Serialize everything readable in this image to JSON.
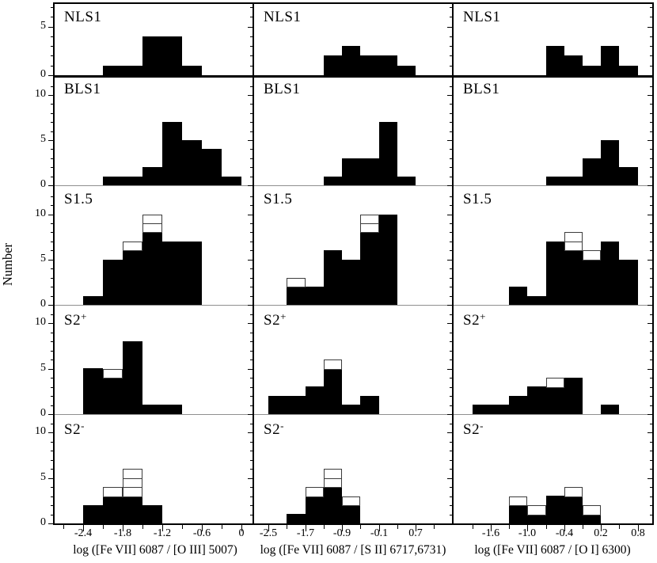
{
  "chart_data": {
    "type": "bar",
    "subtype": "histogram-grid",
    "description": "5x3 grid of histograms; filled black histogram with open (unfilled unit-box) histogram overlay in some panels",
    "ylabel": "Number",
    "columns": [
      {
        "xlabel": "log ([Fe VII] 6087 / [O III] 5007)",
        "xlim": [
          -2.85,
          0.18
        ],
        "bin_width": 0.3,
        "major_ticks": [
          -2.4,
          -1.8,
          -1.2,
          -0.6,
          0.0
        ],
        "major_tick_labels": [
          "-2.4",
          "-1.8",
          "-1.2",
          "-0.6",
          "0"
        ],
        "minor_ticks": [
          -2.7,
          -2.1,
          -1.5,
          -0.9,
          -0.3
        ]
      },
      {
        "xlabel": "log ([Fe VII] 6087 / [S II] 6717,6731)",
        "xlim": [
          -2.83,
          1.51
        ],
        "bin_width": 0.4,
        "major_ticks": [
          -2.5,
          -1.7,
          -0.9,
          -0.1,
          0.7
        ],
        "major_tick_labels": [
          "-2.5",
          "-1.7",
          "-0.9",
          "-0.1",
          "0.7"
        ],
        "minor_ticks": [
          -2.1,
          -1.3,
          -0.5,
          0.3,
          1.1
        ]
      },
      {
        "xlabel": "log ([Fe VII] 6087 / [O I] 6300)",
        "xlim": [
          -2.22,
          1.05
        ],
        "bin_width": 0.3,
        "major_ticks": [
          -1.6,
          -1.0,
          -0.4,
          0.2,
          0.8
        ],
        "major_tick_labels": [
          "-1.6",
          "-1.0",
          "-0.4",
          "0.2",
          "0.8"
        ],
        "minor_ticks": [
          -1.9,
          -1.3,
          -0.7,
          -0.1,
          0.5
        ]
      }
    ],
    "rows": [
      {
        "label": "NLS1",
        "sup": "",
        "ylim": 7.4,
        "yticks": [
          {
            "v": 5,
            "label": "5"
          },
          {
            "v": 0,
            "label": "0"
          }
        ]
      },
      {
        "label": "BLS1",
        "sup": "",
        "ylim": 12.2,
        "yticks": [
          {
            "v": 10,
            "label": "10"
          },
          {
            "v": 5,
            "label": "5"
          },
          {
            "v": 0,
            "label": "0"
          }
        ]
      },
      {
        "label": "S1.5",
        "sup": "",
        "ylim": 13.2,
        "yticks": [
          {
            "v": 10,
            "label": "10"
          },
          {
            "v": 5,
            "label": "5"
          },
          {
            "v": 0,
            "label": "0"
          }
        ]
      },
      {
        "label": "S2",
        "sup": "+",
        "ylim": 12.0,
        "yticks": [
          {
            "v": 10,
            "label": "10"
          },
          {
            "v": 5,
            "label": "5"
          },
          {
            "v": 0,
            "label": "0"
          }
        ]
      },
      {
        "label": "S2",
        "sup": "-",
        "ylim": 12.0,
        "yticks": [
          {
            "v": 10,
            "label": "10"
          },
          {
            "v": 5,
            "label": "5"
          },
          {
            "v": 0,
            "label": "0"
          }
        ]
      }
    ],
    "panels_note": "each bar = [bin_left_edge, filled_count, open_total_count(optional, defaults to filled)]",
    "panels": [
      [
        [
          [
            -2.1,
            1
          ],
          [
            -1.8,
            1
          ],
          [
            -1.5,
            4
          ],
          [
            -1.2,
            4
          ],
          [
            -0.9,
            1
          ]
        ],
        [
          [
            -1.3,
            2
          ],
          [
            -0.9,
            3
          ],
          [
            -0.5,
            2
          ],
          [
            -0.1,
            2
          ],
          [
            0.3,
            1
          ]
        ],
        [
          [
            -0.7,
            3
          ],
          [
            -0.4,
            2
          ],
          [
            -0.1,
            1
          ],
          [
            0.2,
            3
          ],
          [
            0.5,
            1
          ]
        ]
      ],
      [
        [
          [
            -2.1,
            1
          ],
          [
            -1.8,
            1
          ],
          [
            -1.5,
            2
          ],
          [
            -1.2,
            7
          ],
          [
            -0.9,
            5
          ],
          [
            -0.6,
            4
          ],
          [
            -0.3,
            1
          ]
        ],
        [
          [
            -1.3,
            1
          ],
          [
            -0.9,
            3
          ],
          [
            -0.5,
            3
          ],
          [
            -0.1,
            7
          ],
          [
            0.3,
            1
          ]
        ],
        [
          [
            -0.7,
            1
          ],
          [
            -0.4,
            1
          ],
          [
            -0.1,
            3
          ],
          [
            0.2,
            5
          ],
          [
            0.5,
            2
          ]
        ]
      ],
      [
        [
          [
            -2.4,
            1
          ],
          [
            -2.1,
            5
          ],
          [
            -1.8,
            6,
            7
          ],
          [
            -1.5,
            8,
            10
          ],
          [
            -1.2,
            7
          ],
          [
            -0.9,
            7
          ]
        ],
        [
          [
            -2.1,
            2,
            3
          ],
          [
            -1.7,
            2
          ],
          [
            -1.3,
            6
          ],
          [
            -0.9,
            5
          ],
          [
            -0.5,
            8,
            10
          ],
          [
            -0.1,
            10
          ]
        ],
        [
          [
            -1.3,
            2
          ],
          [
            -1.0,
            1
          ],
          [
            -0.7,
            7
          ],
          [
            -0.4,
            6,
            8
          ],
          [
            -0.1,
            5,
            6
          ],
          [
            0.2,
            7
          ],
          [
            0.5,
            5
          ]
        ]
      ],
      [
        [
          [
            -2.4,
            5
          ],
          [
            -2.1,
            4,
            5
          ],
          [
            -1.8,
            8
          ],
          [
            -1.5,
            1
          ],
          [
            -1.2,
            1
          ]
        ],
        [
          [
            -2.5,
            2
          ],
          [
            -2.1,
            2
          ],
          [
            -1.7,
            3
          ],
          [
            -1.3,
            5,
            6
          ],
          [
            -0.9,
            1
          ],
          [
            -0.5,
            2
          ]
        ],
        [
          [
            -1.9,
            1
          ],
          [
            -1.6,
            1
          ],
          [
            -1.3,
            2
          ],
          [
            -1.0,
            3
          ],
          [
            -0.7,
            3,
            4
          ],
          [
            -0.4,
            4
          ],
          [
            0.2,
            1
          ]
        ]
      ],
      [
        [
          [
            -2.4,
            2
          ],
          [
            -2.1,
            3,
            4
          ],
          [
            -1.8,
            3,
            6
          ],
          [
            -1.5,
            2
          ]
        ],
        [
          [
            -2.1,
            1
          ],
          [
            -1.7,
            3,
            4
          ],
          [
            -1.3,
            4,
            6
          ],
          [
            -0.9,
            2,
            3
          ]
        ],
        [
          [
            -1.3,
            2,
            3
          ],
          [
            -1.0,
            1,
            2
          ],
          [
            -0.7,
            3
          ],
          [
            -0.4,
            3,
            4
          ],
          [
            -0.1,
            1,
            2
          ]
        ]
      ]
    ],
    "colors": {
      "filled_bar": "#000000",
      "open_bar_outline": "#3c3c3c",
      "panel_divider": "#8f8f8f",
      "frame": "#000000"
    },
    "layout_hints": {
      "grid": "off",
      "ticks": "outward bottom/left",
      "y_tick_labels_only_left_column": true
    }
  }
}
